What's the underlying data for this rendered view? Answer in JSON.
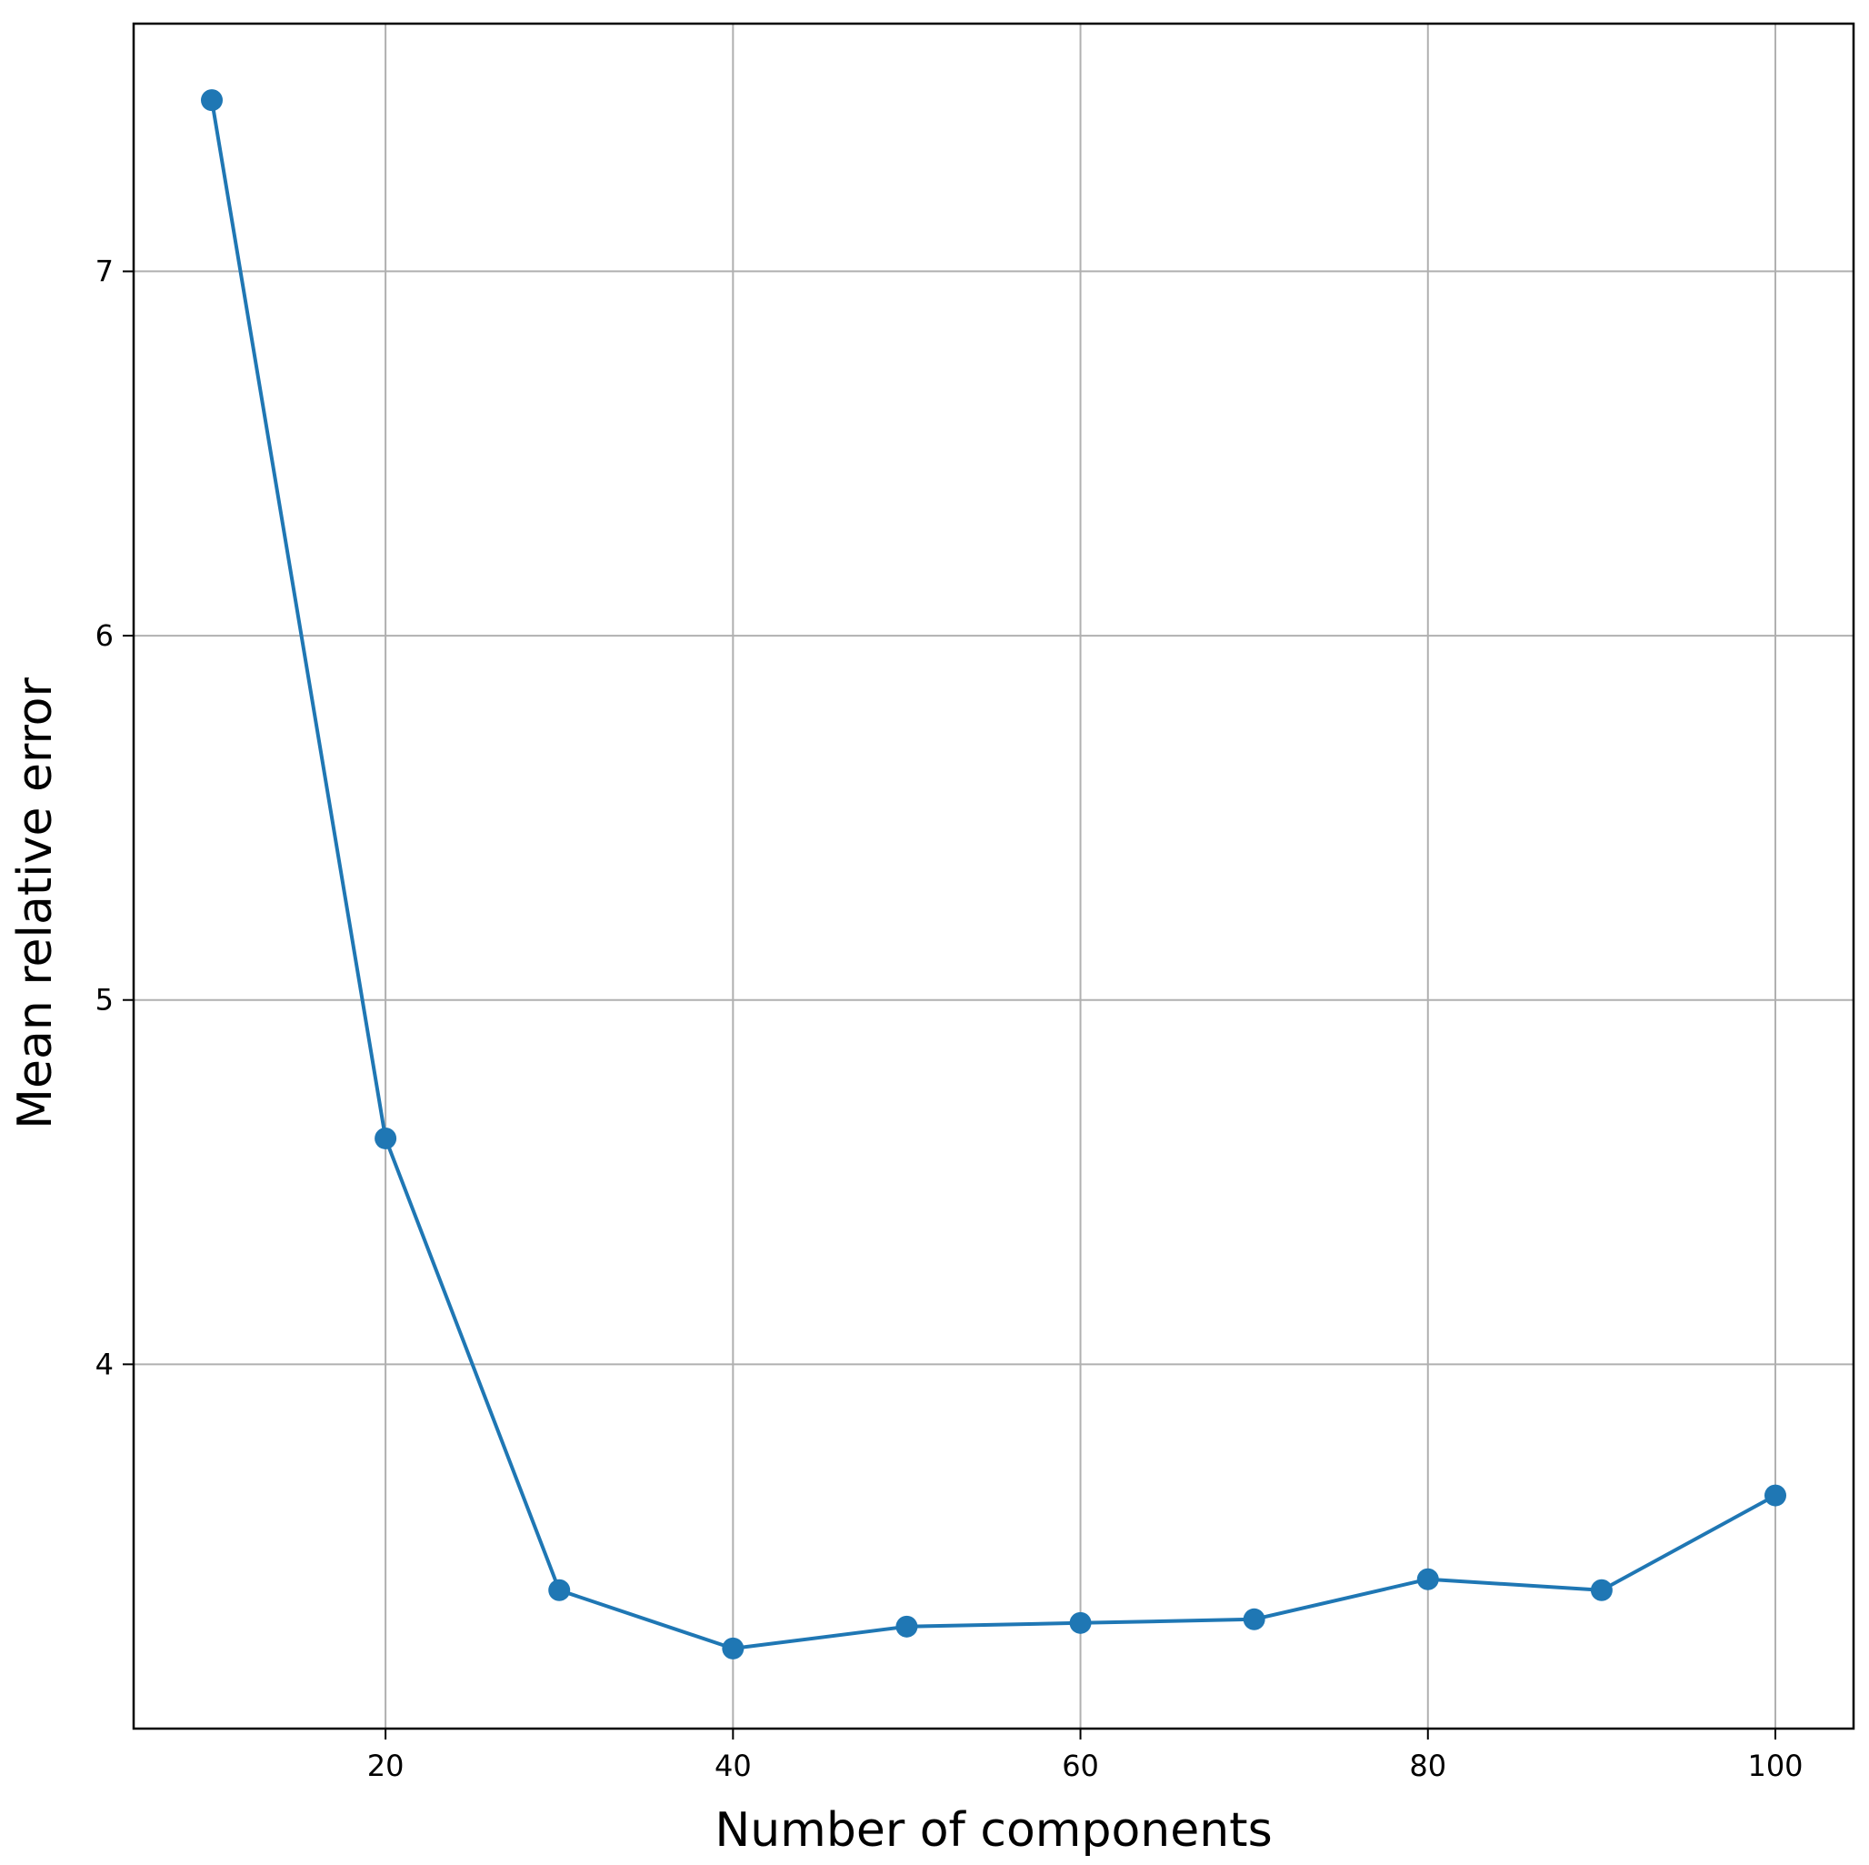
{
  "chart_data": {
    "type": "line",
    "title": "",
    "xlabel": "Number of components",
    "ylabel": "Mean relative error",
    "xlim": [
      5.5,
      104.5
    ],
    "ylim": [
      3.0,
      7.68
    ],
    "xticks": [
      20,
      40,
      60,
      80,
      100
    ],
    "yticks": [
      4,
      5,
      6,
      7
    ],
    "xtick_labels": [
      "20",
      "40",
      "60",
      "80",
      "100"
    ],
    "ytick_labels": [
      "4",
      "5",
      "6",
      "7"
    ],
    "grid": true,
    "legend": "none",
    "series": [
      {
        "color": "#1f77b4",
        "marker": "circle",
        "x": [
          10,
          20,
          30,
          40,
          50,
          60,
          70,
          80,
          90,
          100
        ],
        "y": [
          7.47,
          4.62,
          3.38,
          3.22,
          3.28,
          3.29,
          3.3,
          3.41,
          3.38,
          3.64
        ]
      }
    ]
  }
}
